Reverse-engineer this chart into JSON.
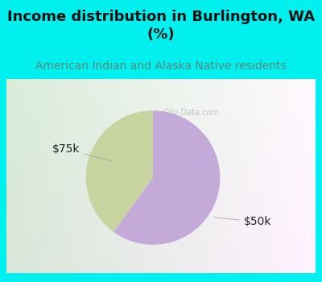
{
  "title": "Income distribution in Burlington, WA\n(%)",
  "subtitle": "American Indian and Alaska Native residents",
  "slices": [
    0.4,
    0.6
  ],
  "labels": [
    "$75k",
    "$50k"
  ],
  "colors": [
    "#c8d4a0",
    "#c4aad8"
  ],
  "background_color": "#00f0f0",
  "title_fontsize": 13,
  "subtitle_fontsize": 10,
  "subtitle_color": "#5a8a7a",
  "label_fontsize": 10,
  "startangle": 90,
  "watermark": "City-Data.com",
  "border_width": 8
}
